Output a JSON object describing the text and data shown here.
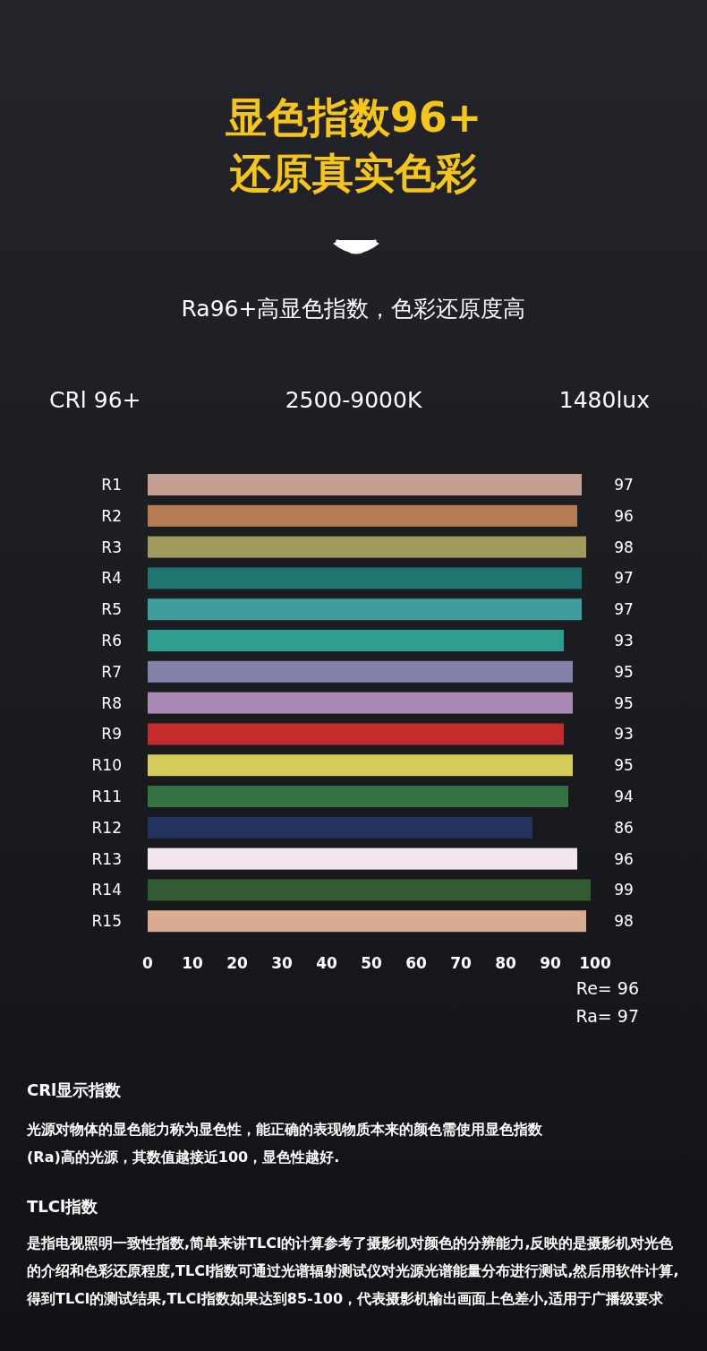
{
  "chart_data": {
    "type": "bar",
    "orientation": "horizontal",
    "title": "显色指数96+\n还原真实色彩",
    "subtitle": "Ra96+高显色指数，色彩还原度高",
    "categories": [
      "R1",
      "R2",
      "R3",
      "R4",
      "R5",
      "R6",
      "R7",
      "R8",
      "R9",
      "R10",
      "R11",
      "R12",
      "R13",
      "R14",
      "R15"
    ],
    "values": [
      97,
      96,
      98,
      97,
      97,
      93,
      95,
      95,
      93,
      95,
      94,
      86,
      96,
      99,
      98
    ],
    "colors": [
      "#c4a092",
      "#b57b52",
      "#a09a5e",
      "#1f7670",
      "#3f9e9c",
      "#2e9e8e",
      "#8381a8",
      "#a88ab4",
      "#c42b2c",
      "#d3cc58",
      "#347244",
      "#23325e",
      "#f3e6ef",
      "#335b33",
      "#d9ab90"
    ],
    "xlim": [
      0,
      100
    ],
    "xticks": [
      0,
      10,
      20,
      30,
      40,
      50,
      60,
      70,
      80,
      90,
      100
    ],
    "data_labels": true,
    "annotations": [
      "CRl 96+",
      "2500-9000K",
      "1480lux",
      "Re= 96",
      "Ra= 97",
      "CRl显示指数",
      "光源对物体的显色能力称为显色性，能正确的表现物质本来的颜色需使用显色指数\n(Ra)高的光源，其数值越接近100，显色性越好.",
      "TLCl指数",
      "是指电视照明一致性指数,简单来讲TLCl的计算参考了摄影机对颜色的分辨能力,反映的是摄影机对光色的介绍和色彩还原程度,TLCl指数可通过光谱辐射测试仪对光源光谱能量分布进行测试,然后用软件计算,得到TLCl的测试结果,TLCl指数如果达到85-100，代表摄影机输出画面上色差小,适用于广播级要求"
    ]
  }
}
